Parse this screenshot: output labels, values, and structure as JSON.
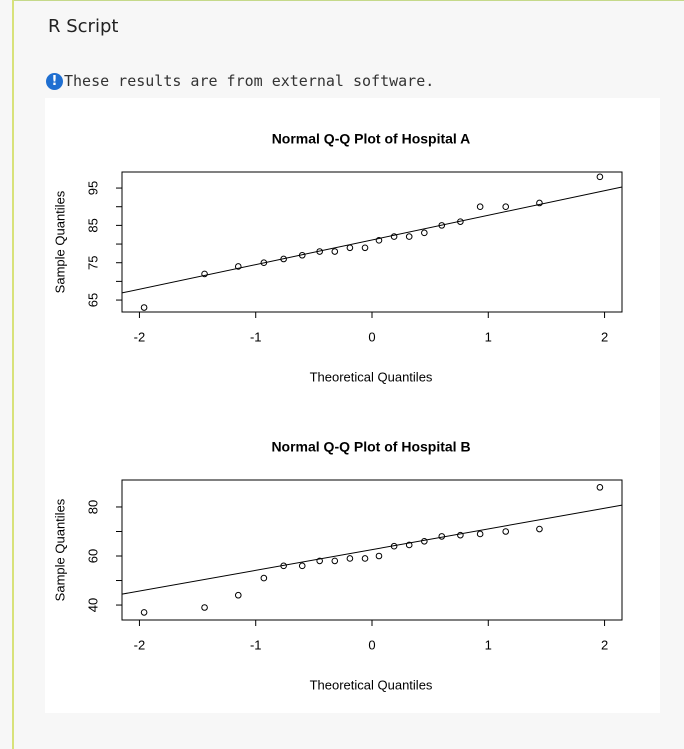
{
  "header": {
    "title": "R Script"
  },
  "notice": {
    "text": "These results are from external software."
  },
  "chart_data": [
    {
      "type": "scatter",
      "title": "Normal Q-Q Plot of Hospital A",
      "x_label": "Theoretical Quantiles",
      "y_label": "Sample Quantiles",
      "x": [
        -1.96,
        -1.44,
        -1.15,
        -0.93,
        -0.76,
        -0.6,
        -0.45,
        -0.32,
        -0.19,
        -0.06,
        0.06,
        0.19,
        0.32,
        0.45,
        0.6,
        0.76,
        0.93,
        1.15,
        1.44,
        1.96
      ],
      "values": [
        63,
        72,
        74,
        75,
        76,
        77,
        78,
        78,
        79,
        79,
        81,
        82,
        82,
        83,
        85,
        86,
        90,
        90,
        91,
        98
      ],
      "line": {
        "intercept": 81.1,
        "slope": 6.6
      },
      "xlim": [
        -2.15,
        2.15
      ],
      "xticks": [
        -2,
        -1,
        0,
        1,
        2
      ],
      "ylim": [
        61.8,
        99.3
      ],
      "yticks": [
        {
          "value": 65,
          "label": "65"
        },
        {
          "value": 70,
          "label": ""
        },
        {
          "value": 75,
          "label": "75"
        },
        {
          "value": 80,
          "label": ""
        },
        {
          "value": 85,
          "label": "85"
        },
        {
          "value": 90,
          "label": ""
        },
        {
          "value": 95,
          "label": "95"
        }
      ],
      "color": "#000000"
    },
    {
      "type": "scatter",
      "title": "Normal Q-Q Plot of Hospital B",
      "x_label": "Theoretical Quantiles",
      "y_label": "Sample Quantiles",
      "x": [
        -1.96,
        -1.44,
        -1.15,
        -0.93,
        -0.76,
        -0.6,
        -0.45,
        -0.32,
        -0.19,
        -0.06,
        0.06,
        0.19,
        0.32,
        0.45,
        0.6,
        0.76,
        0.93,
        1.15,
        1.44,
        1.96
      ],
      "values": [
        37,
        39,
        44,
        51,
        56,
        56,
        58,
        58,
        59,
        59,
        60,
        64,
        64.5,
        66,
        68,
        68.5,
        69,
        70,
        71,
        88
      ],
      "line": {
        "intercept": 62.6,
        "slope": 8.44
      },
      "xlim": [
        -2.15,
        2.15
      ],
      "xticks": [
        -2,
        -1,
        0,
        1,
        2
      ],
      "ylim": [
        33.9,
        91
      ],
      "yticks": [
        {
          "value": 40,
          "label": "40"
        },
        {
          "value": 50,
          "label": ""
        },
        {
          "value": 60,
          "label": "60"
        },
        {
          "value": 70,
          "label": ""
        },
        {
          "value": 80,
          "label": "80"
        }
      ],
      "color": "#000000"
    }
  ]
}
